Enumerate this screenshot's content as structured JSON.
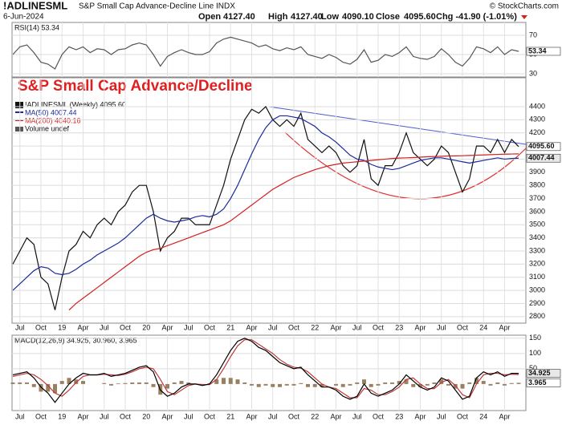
{
  "header": {
    "symbol": "!ADLINESML",
    "description": "S&P Small Cap Advance-Decline Line INDX",
    "source": "© StockCharts.com",
    "date": "6-Jun-2024",
    "quote": [
      {
        "label": "Open",
        "value": "4127.40"
      },
      {
        "label": "High",
        "value": "4127.40"
      },
      {
        "label": "Low",
        "value": "4090.10"
      },
      {
        "label": "Close",
        "value": "4095.60"
      }
    ],
    "change": "Chg -41.90 (-1.01%)"
  },
  "chart_data": [
    {
      "type": "line",
      "ylim": [
        26.7,
        83.3
      ],
      "yticks": [
        30,
        50,
        70
      ],
      "grid": true,
      "series": [
        {
          "name": "RSI(14) 53.34",
          "color": "#555555",
          "values": [
            50,
            58,
            60,
            52,
            42,
            40,
            35,
            50,
            58,
            55,
            58,
            52,
            56,
            55,
            50,
            55,
            56,
            60,
            62,
            60,
            50,
            38,
            48,
            52,
            55,
            52,
            50,
            50,
            53,
            62,
            66,
            68,
            66,
            64,
            62,
            58,
            60,
            56,
            54,
            57,
            55,
            58,
            50,
            48,
            46,
            50,
            47,
            42,
            40,
            45,
            55,
            42,
            44,
            50,
            48,
            52,
            58,
            48,
            46,
            45,
            48,
            56,
            50,
            42,
            38,
            46,
            58,
            56,
            52,
            58,
            50,
            55,
            53.34
          ],
          "value_labels": [
            null,
            null,
            null,
            null,
            null,
            null,
            null,
            null,
            null,
            null,
            null,
            null,
            null,
            null,
            null,
            null,
            null,
            null,
            null,
            null,
            null,
            null,
            null,
            null,
            null,
            null,
            null,
            null,
            null,
            null,
            null,
            null,
            null,
            null,
            null,
            null,
            null,
            null,
            null,
            null,
            null,
            null,
            null,
            null,
            null,
            null,
            null,
            null,
            null,
            null,
            null,
            null,
            null,
            null,
            null,
            null,
            null,
            null,
            null,
            null,
            null,
            null,
            null,
            null,
            null,
            null,
            null,
            null,
            null,
            null,
            null,
            null,
            "53.34"
          ]
        }
      ]
    },
    {
      "type": "line",
      "title": "S&P Small Cap  Advance/Decline",
      "volume_label": "Volume undef",
      "ylim": [
        2750,
        4620
      ],
      "yticks": [
        2800,
        2900,
        3000,
        3100,
        3200,
        3300,
        3400,
        3500,
        3600,
        3700,
        3800,
        3900,
        4000,
        4100,
        4200,
        4300,
        4400
      ],
      "grid": true,
      "categories": [
        null,
        "Jul",
        null,
        null,
        "Oct",
        null,
        null,
        "19",
        null,
        null,
        "Apr",
        null,
        null,
        "Jul",
        null,
        null,
        "Oct",
        null,
        null,
        "20",
        null,
        null,
        "Apr",
        null,
        null,
        "Jul",
        null,
        null,
        "Oct",
        null,
        null,
        "21",
        null,
        null,
        "Apr",
        null,
        null,
        "Jul",
        null,
        null,
        "Oct",
        null,
        null,
        "22",
        null,
        null,
        "Apr",
        null,
        null,
        "Jul",
        null,
        null,
        "Oct",
        null,
        null,
        "23",
        null,
        null,
        "Apr",
        null,
        null,
        "Jul",
        null,
        null,
        "Oct",
        null,
        null,
        "24",
        null,
        null,
        "Apr",
        null,
        null
      ],
      "series": [
        {
          "name": "!ADLINESML (Weekly) 4095.60",
          "color": "#111111",
          "values": [
            3200,
            3300,
            3400,
            3350,
            3100,
            3050,
            2850,
            3100,
            3300,
            3350,
            3450,
            3400,
            3500,
            3550,
            3500,
            3600,
            3650,
            3750,
            3800,
            3800,
            3600,
            3300,
            3400,
            3450,
            3550,
            3550,
            3500,
            3500,
            3500,
            3650,
            3800,
            4000,
            4150,
            4300,
            4380,
            4350,
            4400,
            4300,
            4250,
            4300,
            4250,
            4350,
            4150,
            4100,
            4050,
            4100,
            4050,
            3950,
            3900,
            3950,
            4150,
            3850,
            3800,
            3950,
            3950,
            4050,
            4200,
            4050,
            4000,
            3950,
            4000,
            4100,
            4050,
            3900,
            3750,
            3850,
            4100,
            4100,
            4050,
            4150,
            4050,
            4150,
            4095.6
          ],
          "value_labels": [
            null,
            null,
            null,
            null,
            null,
            null,
            null,
            null,
            null,
            null,
            null,
            null,
            null,
            null,
            null,
            null,
            null,
            null,
            null,
            null,
            null,
            null,
            null,
            null,
            null,
            null,
            null,
            null,
            null,
            null,
            null,
            null,
            null,
            null,
            null,
            null,
            null,
            null,
            null,
            null,
            null,
            null,
            null,
            null,
            null,
            null,
            null,
            null,
            null,
            null,
            null,
            null,
            null,
            null,
            null,
            null,
            null,
            null,
            null,
            null,
            null,
            null,
            null,
            null,
            null,
            null,
            null,
            null,
            null,
            null,
            null,
            null,
            "4095.60"
          ]
        },
        {
          "name": "MA(50) 4007.44",
          "color": "#1c2a9c",
          "values": [
            3000,
            3050,
            3100,
            3150,
            3180,
            3170,
            3130,
            3120,
            3130,
            3160,
            3200,
            3230,
            3270,
            3300,
            3330,
            3360,
            3400,
            3450,
            3500,
            3550,
            3580,
            3550,
            3530,
            3520,
            3530,
            3540,
            3560,
            3570,
            3560,
            3580,
            3620,
            3700,
            3800,
            3920,
            4040,
            4150,
            4240,
            4300,
            4330,
            4330,
            4320,
            4310,
            4280,
            4250,
            4200,
            4170,
            4130,
            4080,
            4030,
            4000,
            3990,
            3960,
            3940,
            3930,
            3920,
            3930,
            3950,
            3970,
            3990,
            4000,
            4010,
            4010,
            4000,
            3990,
            3980,
            3970,
            3980,
            3990,
            4000,
            4010,
            4000,
            4005,
            4007.44
          ],
          "value_labels": [
            null,
            null,
            null,
            null,
            null,
            null,
            null,
            null,
            null,
            null,
            null,
            null,
            null,
            null,
            null,
            null,
            null,
            null,
            null,
            null,
            null,
            null,
            null,
            null,
            null,
            null,
            null,
            null,
            null,
            null,
            null,
            null,
            null,
            null,
            null,
            null,
            null,
            null,
            null,
            null,
            null,
            null,
            null,
            null,
            null,
            null,
            null,
            null,
            null,
            null,
            null,
            null,
            null,
            null,
            null,
            null,
            null,
            null,
            null,
            null,
            null,
            null,
            null,
            null,
            null,
            null,
            null,
            null,
            null,
            null,
            null,
            null,
            "4007.44"
          ]
        },
        {
          "name": "MA(200) 4040.16",
          "color": "#d42020",
          "values": [
            null,
            null,
            null,
            null,
            null,
            null,
            null,
            null,
            2850,
            2900,
            2940,
            2980,
            3020,
            3060,
            3100,
            3140,
            3180,
            3220,
            3260,
            3290,
            3310,
            3320,
            3340,
            3360,
            3380,
            3400,
            3420,
            3440,
            3460,
            3480,
            3500,
            3530,
            3570,
            3610,
            3650,
            3690,
            3730,
            3770,
            3800,
            3830,
            3860,
            3880,
            3900,
            3920,
            3935,
            3950,
            3960,
            3970,
            3975,
            3980,
            3985,
            3990,
            3995,
            4000,
            4005,
            4008,
            4010,
            4012,
            4015,
            4018,
            4020,
            4022,
            4024,
            4025,
            4026,
            4028,
            4030,
            4032,
            4034,
            4036,
            4038,
            4039,
            4040.16
          ]
        }
      ]
    },
    {
      "type": "line",
      "legend": "MACD(12,26,9) 34.925, 30.960, 3.965",
      "ylim": [
        -87,
        160
      ],
      "yticks": [
        50,
        100,
        150
      ],
      "grid": true,
      "categories": [
        null,
        "Jul",
        null,
        null,
        "Oct",
        null,
        null,
        "19",
        null,
        null,
        "Apr",
        null,
        null,
        "Jul",
        null,
        null,
        "Oct",
        null,
        null,
        "20",
        null,
        null,
        "Apr",
        null,
        null,
        "Jul",
        null,
        null,
        "Oct",
        null,
        null,
        "21",
        null,
        null,
        "Apr",
        null,
        null,
        "Jul",
        null,
        null,
        "Oct",
        null,
        null,
        "22",
        null,
        null,
        "Apr",
        null,
        null,
        "Jul",
        null,
        null,
        "Oct",
        null,
        null,
        "23",
        null,
        null,
        "Apr",
        null,
        null,
        "Jul",
        null,
        null,
        "Oct",
        null,
        null,
        "24",
        null,
        null,
        "Apr",
        null,
        null
      ],
      "series": [
        {
          "type": "bar",
          "color": "#9a8060",
          "values": [
            5,
            5,
            5,
            -10,
            -25,
            -25,
            -30,
            10,
            20,
            15,
            10,
            0,
            0,
            3,
            -5,
            2,
            3,
            5,
            5,
            5,
            -10,
            -35,
            -15,
            5,
            10,
            5,
            0,
            -3,
            2,
            15,
            20,
            20,
            15,
            5,
            -5,
            -10,
            -5,
            -10,
            -10,
            -5,
            -5,
            3,
            -10,
            -10,
            -10,
            0,
            -5,
            -10,
            -5,
            5,
            15,
            -10,
            -5,
            5,
            5,
            10,
            15,
            -10,
            -10,
            -5,
            5,
            15,
            -5,
            -15,
            -15,
            5,
            20,
            10,
            -5,
            5,
            -5,
            3,
            3.965
          ],
          "value_labels": [
            null,
            null,
            null,
            null,
            null,
            null,
            null,
            null,
            null,
            null,
            null,
            null,
            null,
            null,
            null,
            null,
            null,
            null,
            null,
            null,
            null,
            null,
            null,
            null,
            null,
            null,
            null,
            null,
            null,
            null,
            null,
            null,
            null,
            null,
            null,
            null,
            null,
            null,
            null,
            null,
            null,
            null,
            null,
            null,
            null,
            null,
            null,
            null,
            null,
            null,
            null,
            null,
            null,
            null,
            null,
            null,
            null,
            null,
            null,
            null,
            null,
            null,
            null,
            null,
            null,
            null,
            null,
            null,
            null,
            null,
            null,
            null,
            "3.965"
          ]
        },
        {
          "color": "#c03838",
          "values": [
            25,
            30,
            35,
            30,
            15,
            -5,
            -30,
            -40,
            -20,
            5,
            25,
            30,
            30,
            32,
            30,
            28,
            32,
            40,
            50,
            55,
            50,
            15,
            -25,
            -35,
            -20,
            -5,
            0,
            -2,
            -2,
            15,
            50,
            90,
            125,
            145,
            145,
            130,
            115,
            100,
            80,
            65,
            55,
            52,
            40,
            20,
            0,
            -10,
            -15,
            -30,
            -45,
            -45,
            -15,
            -20,
            -35,
            -35,
            -25,
            -10,
            15,
            20,
            0,
            -15,
            -15,
            5,
            15,
            -5,
            -35,
            -45,
            0,
            30,
            35,
            35,
            30,
            32,
            30.96
          ]
        },
        {
          "color": "#000000",
          "values": [
            30,
            35,
            40,
            20,
            -10,
            -30,
            -60,
            -30,
            0,
            20,
            35,
            30,
            30,
            35,
            25,
            30,
            35,
            45,
            55,
            60,
            40,
            -20,
            -40,
            -30,
            -10,
            0,
            0,
            -5,
            0,
            30,
            70,
            110,
            140,
            150,
            140,
            120,
            110,
            90,
            70,
            60,
            50,
            55,
            30,
            10,
            -10,
            -10,
            -20,
            -40,
            -50,
            -40,
            0,
            -30,
            -40,
            -30,
            -20,
            0,
            30,
            10,
            -10,
            -20,
            -10,
            20,
            10,
            -20,
            -50,
            -40,
            20,
            40,
            30,
            40,
            25,
            35,
            34.925
          ],
          "value_labels": [
            null,
            null,
            null,
            null,
            null,
            null,
            null,
            null,
            null,
            null,
            null,
            null,
            null,
            null,
            null,
            null,
            null,
            null,
            null,
            null,
            null,
            null,
            null,
            null,
            null,
            null,
            null,
            null,
            null,
            null,
            null,
            null,
            null,
            null,
            null,
            null,
            null,
            null,
            null,
            null,
            null,
            null,
            null,
            null,
            null,
            null,
            null,
            null,
            null,
            null,
            null,
            null,
            null,
            null,
            null,
            null,
            null,
            null,
            null,
            null,
            null,
            null,
            null,
            null,
            null,
            null,
            null,
            null,
            null,
            null,
            null,
            null,
            "34.925"
          ]
        }
      ]
    }
  ]
}
